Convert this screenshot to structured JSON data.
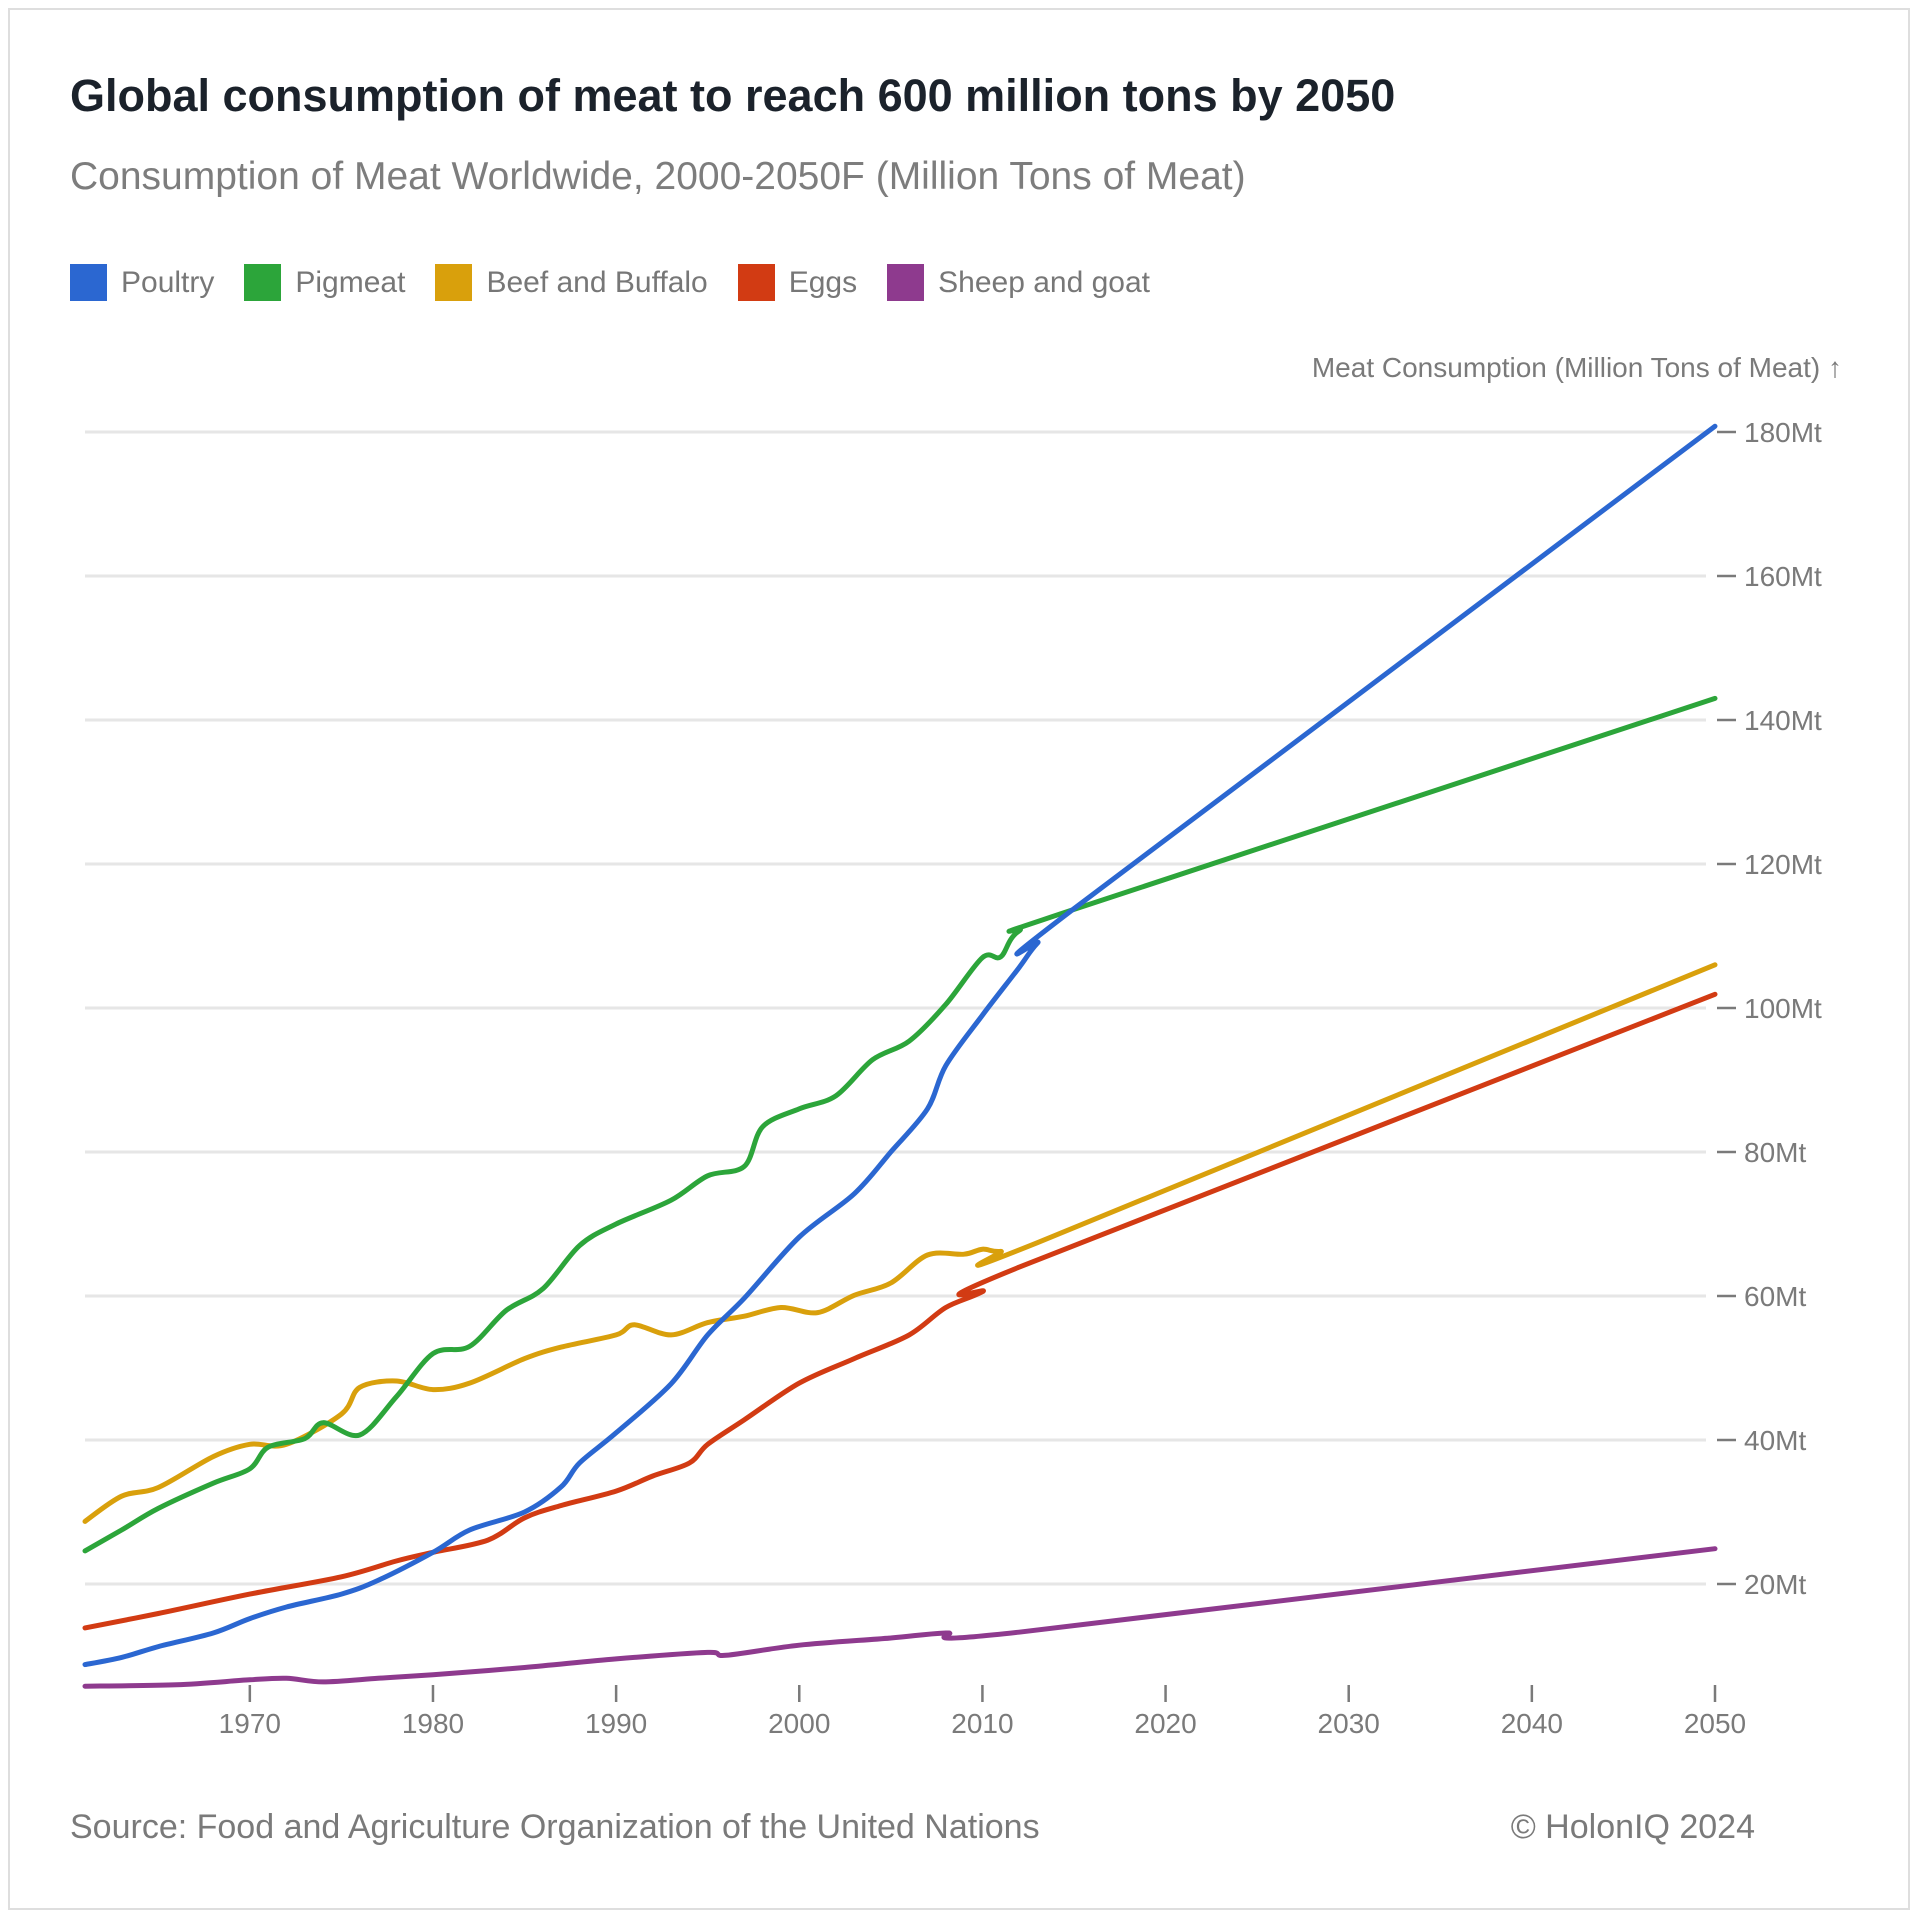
{
  "chart_data": {
    "type": "line",
    "title": "Global consumption of meat to reach 600 million tons by 2050",
    "subtitle": "Consumption of Meat Worldwide, 2000-2050F (Million Tons of Meat)",
    "xlabel": "",
    "ylabel": "Meat Consumption (Million Tons of Meat) ↑",
    "xlim": [
      1961,
      2050
    ],
    "ylim": [
      0,
      180
    ],
    "x_ticks": [
      1970,
      1980,
      1990,
      2000,
      2010,
      2020,
      2030,
      2040,
      2050
    ],
    "y_ticks": [
      {
        "value": 20,
        "label": "20Mt"
      },
      {
        "value": 40,
        "label": "40Mt"
      },
      {
        "value": 60,
        "label": "60Mt"
      },
      {
        "value": 80,
        "label": "80Mt"
      },
      {
        "value": 100,
        "label": "100Mt"
      },
      {
        "value": 120,
        "label": "120Mt"
      },
      {
        "value": 140,
        "label": "140Mt"
      },
      {
        "value": 160,
        "label": "160Mt"
      },
      {
        "value": 180,
        "label": "180Mt"
      }
    ],
    "grid": true,
    "legend_position": "top-left",
    "series": [
      {
        "name": "Poultry",
        "color": "#2b67d1",
        "points": [
          [
            1961,
            8.8
          ],
          [
            1963,
            9.8
          ],
          [
            1965,
            11.3
          ],
          [
            1968,
            13.2
          ],
          [
            1970,
            15.2
          ],
          [
            1972,
            16.8
          ],
          [
            1975,
            18.6
          ],
          [
            1977,
            20.5
          ],
          [
            1980,
            24.4
          ],
          [
            1982,
            27.5
          ],
          [
            1985,
            30.0
          ],
          [
            1987,
            33.5
          ],
          [
            1988,
            36.8
          ],
          [
            1990,
            41.0
          ],
          [
            1993,
            47.8
          ],
          [
            1995,
            54.6
          ],
          [
            1997,
            59.7
          ],
          [
            2000,
            68.2
          ],
          [
            2003,
            74.2
          ],
          [
            2005,
            80.0
          ],
          [
            2007,
            86.0
          ],
          [
            2008,
            92.0
          ],
          [
            2010,
            99.0
          ],
          [
            2012,
            105.6
          ],
          [
            2013,
            109.0
          ],
          [
            2015,
            113.8
          ],
          [
            2050,
            180.8
          ]
        ]
      },
      {
        "name": "Pigmeat",
        "color": "#2ca53a",
        "points": [
          [
            1961,
            24.6
          ],
          [
            1963,
            27.5
          ],
          [
            1965,
            30.5
          ],
          [
            1968,
            34.0
          ],
          [
            1970,
            36.0
          ],
          [
            1971,
            39.0
          ],
          [
            1973,
            40.2
          ],
          [
            1974,
            42.4
          ],
          [
            1976,
            40.7
          ],
          [
            1978,
            46.0
          ],
          [
            1980,
            52.0
          ],
          [
            1982,
            53.0
          ],
          [
            1984,
            58.0
          ],
          [
            1986,
            61.0
          ],
          [
            1988,
            67.0
          ],
          [
            1990,
            70.0
          ],
          [
            1993,
            73.3
          ],
          [
            1995,
            76.7
          ],
          [
            1997,
            78.0
          ],
          [
            1998,
            83.5
          ],
          [
            2000,
            86.0
          ],
          [
            2002,
            87.8
          ],
          [
            2004,
            92.8
          ],
          [
            2006,
            95.4
          ],
          [
            2008,
            100.5
          ],
          [
            2010,
            107.0
          ],
          [
            2011,
            107.1
          ],
          [
            2012,
            110.7
          ],
          [
            2015,
            113.7
          ],
          [
            2050,
            143.0
          ]
        ]
      },
      {
        "name": "Beef and Buffalo",
        "color": "#d9a00c",
        "points": [
          [
            1961,
            28.7
          ],
          [
            1963,
            32.2
          ],
          [
            1965,
            33.4
          ],
          [
            1968,
            37.7
          ],
          [
            1970,
            39.4
          ],
          [
            1972,
            39.4
          ],
          [
            1975,
            43.6
          ],
          [
            1976,
            47.3
          ],
          [
            1978,
            48.2
          ],
          [
            1980,
            47.0
          ],
          [
            1982,
            47.9
          ],
          [
            1985,
            51.3
          ],
          [
            1987,
            52.9
          ],
          [
            1990,
            54.6
          ],
          [
            1991,
            56.0
          ],
          [
            1993,
            54.6
          ],
          [
            1995,
            56.3
          ],
          [
            1997,
            57.2
          ],
          [
            1999,
            58.4
          ],
          [
            2001,
            57.7
          ],
          [
            2003,
            60.1
          ],
          [
            2005,
            61.8
          ],
          [
            2007,
            65.7
          ],
          [
            2009,
            65.8
          ],
          [
            2010,
            66.5
          ],
          [
            2011,
            66.2
          ],
          [
            2013,
            67.4
          ],
          [
            2050,
            106.0
          ]
        ]
      },
      {
        "name": "Eggs",
        "color": "#d23b13",
        "points": [
          [
            1961,
            13.9
          ],
          [
            1965,
            15.9
          ],
          [
            1970,
            18.6
          ],
          [
            1975,
            21.0
          ],
          [
            1978,
            23.2
          ],
          [
            1980,
            24.4
          ],
          [
            1983,
            26.1
          ],
          [
            1985,
            29.2
          ],
          [
            1987,
            30.9
          ],
          [
            1990,
            32.9
          ],
          [
            1992,
            35.0
          ],
          [
            1994,
            36.8
          ],
          [
            1995,
            39.4
          ],
          [
            1997,
            42.8
          ],
          [
            2000,
            47.9
          ],
          [
            2003,
            51.3
          ],
          [
            2006,
            54.6
          ],
          [
            2008,
            58.4
          ],
          [
            2010,
            60.6
          ],
          [
            2012,
            64.0
          ],
          [
            2050,
            101.9
          ]
        ]
      },
      {
        "name": "Sheep and goat",
        "color": "#8e3a8e",
        "points": [
          [
            1961,
            5.8
          ],
          [
            1966,
            6.0
          ],
          [
            1970,
            6.7
          ],
          [
            1972,
            6.9
          ],
          [
            1974,
            6.4
          ],
          [
            1977,
            6.9
          ],
          [
            1980,
            7.4
          ],
          [
            1985,
            8.4
          ],
          [
            1990,
            9.6
          ],
          [
            1995,
            10.5
          ],
          [
            1996,
            10.1
          ],
          [
            2000,
            11.5
          ],
          [
            2005,
            12.5
          ],
          [
            2008,
            13.2
          ],
          [
            2012,
            13.3
          ],
          [
            2050,
            24.9
          ]
        ]
      }
    ]
  },
  "legend": [
    {
      "label": "Poultry",
      "color": "#2b67d1"
    },
    {
      "label": "Pigmeat",
      "color": "#2ca53a"
    },
    {
      "label": "Beef and Buffalo",
      "color": "#d9a00c"
    },
    {
      "label": "Eggs",
      "color": "#d23b13"
    },
    {
      "label": "Sheep and goat",
      "color": "#8e3a8e"
    }
  ],
  "footer": {
    "source": "Source: Food and Agriculture Organization of the United Nations",
    "copyright": "© HolonIQ 2024"
  }
}
